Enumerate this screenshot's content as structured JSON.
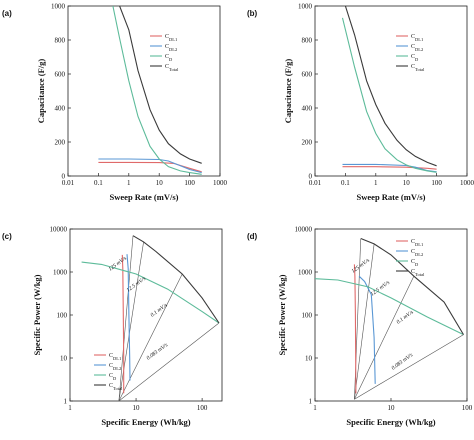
{
  "colors": {
    "CDL1": "#e06a6a",
    "CDL2": "#5a97d4",
    "CD": "#5dbb9a",
    "CTotal": "#3a3a3a",
    "guide": "#555555",
    "frame": "#222222"
  },
  "chart_data": [
    {
      "panel": "(a)",
      "type": "line",
      "xscale": "log",
      "xlabel": "Sweep Rate (mV/s)",
      "ylabel": "Capacitance (F/g)",
      "xlim": [
        0.01,
        1000
      ],
      "ylim": [
        0,
        1000
      ],
      "xticks": [
        "0.01",
        "0.1",
        "1",
        "10",
        "100",
        "1000"
      ],
      "yticks": [
        "0",
        "200",
        "400",
        "600",
        "800",
        "1000"
      ],
      "legend": [
        "C_DL1",
        "C_DL2",
        "C_D",
        "C_Total"
      ],
      "legend_position": "top-right",
      "series": [
        {
          "name": "C_DL1",
          "key": "CDL1",
          "x": [
            0.1,
            1,
            10,
            30,
            100,
            250
          ],
          "y": [
            80,
            80,
            79,
            74,
            45,
            25
          ]
        },
        {
          "name": "C_DL2",
          "key": "CDL2",
          "x": [
            0.1,
            1,
            10,
            20,
            50,
            100,
            250
          ],
          "y": [
            100,
            100,
            97,
            88,
            60,
            38,
            20
          ]
        },
        {
          "name": "C_D",
          "key": "CD",
          "x": [
            0.3,
            0.5,
            1,
            2,
            5,
            10,
            20,
            50,
            100,
            250
          ],
          "y": [
            1000,
            810,
            560,
            350,
            175,
            100,
            55,
            30,
            20,
            10
          ]
        },
        {
          "name": "C_Total",
          "key": "CTotal",
          "x": [
            0.5,
            1,
            2,
            5,
            10,
            20,
            50,
            100,
            250
          ],
          "y": [
            1000,
            860,
            620,
            390,
            270,
            190,
            130,
            100,
            75
          ]
        }
      ]
    },
    {
      "panel": "(b)",
      "type": "line",
      "xscale": "log",
      "xlabel": "Sweep Rate (mV/s)",
      "ylabel": "Capacitance (F/g)",
      "xlim": [
        0.01,
        1000
      ],
      "ylim": [
        0,
        1000
      ],
      "xticks": [
        "0.01",
        "0.1",
        "1",
        "10",
        "100",
        "1000"
      ],
      "yticks": [
        "0",
        "200",
        "400",
        "600",
        "800",
        "1000"
      ],
      "legend": [
        "C_DL1",
        "C_DL2",
        "C_D",
        "C_Total"
      ],
      "legend_position": "top-right",
      "series": [
        {
          "name": "C_DL1",
          "key": "CDL1",
          "x": [
            0.08,
            1,
            10,
            50,
            100
          ],
          "y": [
            55,
            55,
            52,
            45,
            40
          ]
        },
        {
          "name": "C_DL2",
          "key": "CDL2",
          "x": [
            0.08,
            1,
            10,
            20,
            50,
            100
          ],
          "y": [
            68,
            68,
            62,
            52,
            32,
            25
          ]
        },
        {
          "name": "C_D",
          "key": "CD",
          "x": [
            0.08,
            0.2,
            0.5,
            1,
            2,
            5,
            10,
            20,
            50,
            100
          ],
          "y": [
            930,
            640,
            380,
            250,
            160,
            95,
            65,
            45,
            30,
            22
          ]
        },
        {
          "name": "C_Total",
          "key": "CTotal",
          "x": [
            0.1,
            0.2,
            0.5,
            1,
            2,
            5,
            10,
            20,
            50,
            100
          ],
          "y": [
            1000,
            830,
            560,
            420,
            310,
            210,
            155,
            115,
            80,
            60
          ]
        }
      ]
    },
    {
      "panel": "(c)",
      "type": "line",
      "xscale": "log",
      "yscale": "log",
      "xlabel": "Specific Energy (Wh/kg)",
      "ylabel": "Specific Power (W/kg)",
      "xlim": [
        1,
        200
      ],
      "ylim": [
        1,
        10000
      ],
      "xticks": [
        "1",
        "10",
        "100"
      ],
      "yticks": [
        "1",
        "10",
        "100",
        "1000",
        "10000"
      ],
      "legend": [
        "C_DL1",
        "C_DL2",
        "C_D",
        "C_Total"
      ],
      "legend_position": "bottom-left",
      "series": [
        {
          "name": "C_DL1",
          "key": "CDL1",
          "x": [
            6.2,
            6.3,
            6.4,
            6.5,
            6.5
          ],
          "y": [
            2500,
            1200,
            100,
            10,
            1.5
          ]
        },
        {
          "name": "C_DL2",
          "key": "CDL2",
          "x": [
            7.3,
            7.6,
            7.8,
            8.0,
            8.1
          ],
          "y": [
            2600,
            1200,
            100,
            10,
            3
          ]
        },
        {
          "name": "C_D",
          "key": "CD",
          "x": [
            1.5,
            3,
            10,
            30,
            100,
            180
          ],
          "y": [
            1700,
            1500,
            900,
            400,
            120,
            65
          ]
        },
        {
          "name": "C_Total",
          "key": "CTotal",
          "x": [
            9,
            13,
            20,
            50,
            100,
            180
          ],
          "y": [
            7000,
            5000,
            3000,
            900,
            250,
            65
          ]
        }
      ],
      "annotations": [
        "125 mV/s",
        "12.5 mV/s",
        "0.1 mV/s",
        "0.083 mV/s"
      ]
    },
    {
      "panel": "(d)",
      "type": "line",
      "xscale": "log",
      "yscale": "log",
      "xlabel": "Specific Energy (Wh/kg)",
      "ylabel": "Specific Power (W/kg)",
      "xlim": [
        1,
        100
      ],
      "ylim": [
        1,
        10000
      ],
      "xticks": [
        "1",
        "10",
        "100"
      ],
      "yticks": [
        "1",
        "10",
        "100",
        "1000",
        "10000"
      ],
      "legend": [
        "C_DL1",
        "C_DL2",
        "C_D",
        "C_Total"
      ],
      "legend_position": "top-right",
      "series": [
        {
          "name": "C_DL1",
          "key": "CDL1",
          "x": [
            3.3,
            3.35,
            3.4,
            3.45
          ],
          "y": [
            1500,
            800,
            100,
            1.5
          ]
        },
        {
          "name": "C_DL2",
          "key": "CDL2",
          "x": [
            3.8,
            4.5,
            5.5,
            6.0,
            6.2
          ],
          "y": [
            800,
            600,
            300,
            30,
            2.5
          ]
        },
        {
          "name": "C_D",
          "key": "CD",
          "x": [
            1,
            2,
            5,
            10,
            30,
            90
          ],
          "y": [
            700,
            650,
            450,
            250,
            90,
            35
          ]
        },
        {
          "name": "C_Total",
          "key": "CTotal",
          "x": [
            4,
            6,
            10,
            20,
            50,
            90
          ],
          "y": [
            6000,
            4500,
            2500,
            800,
            200,
            35
          ]
        }
      ],
      "annotations": [
        "125 mV/s",
        "12.5 mV/s",
        "0.1 mV/s",
        "0.083 mV/s"
      ]
    }
  ]
}
